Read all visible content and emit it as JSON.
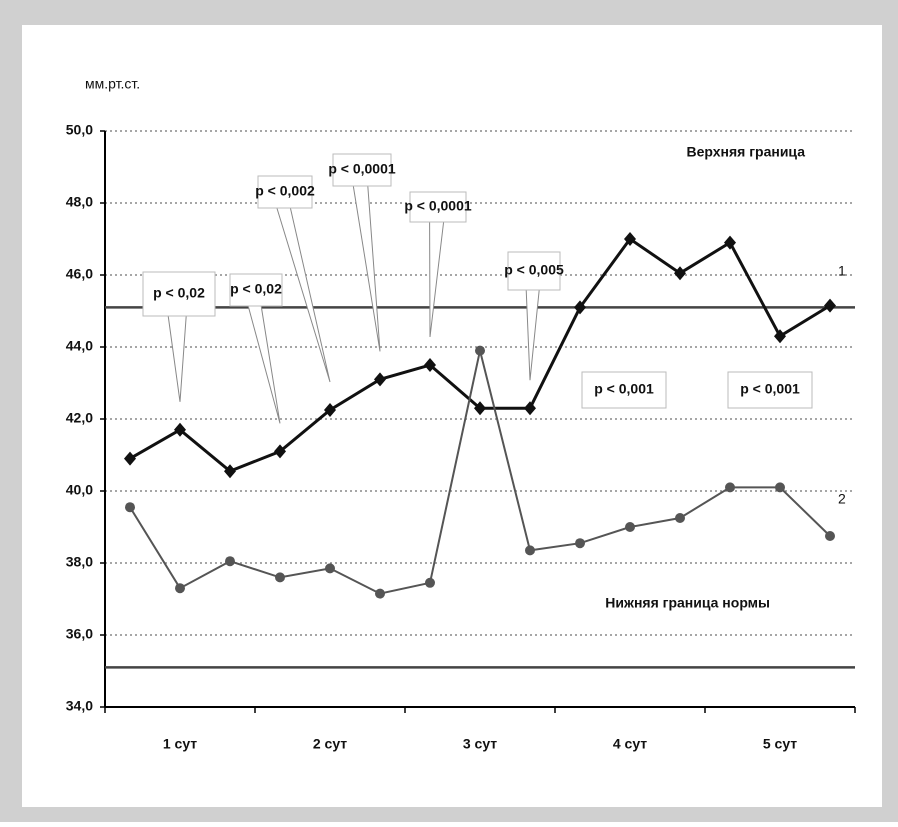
{
  "chart_data": {
    "type": "line",
    "y_label": "мм.рт.ст.",
    "categories": [
      null,
      "1 сут",
      null,
      null,
      "2 сут",
      null,
      null,
      "3 сут",
      null,
      null,
      "4 сут",
      null,
      null,
      "5 сут",
      null
    ],
    "series": [
      {
        "name": "1",
        "color": "#111111",
        "values": [
          40.9,
          41.7,
          40.55,
          41.1,
          42.25,
          43.1,
          43.5,
          42.3,
          42.3,
          45.1,
          47.0,
          46.05,
          46.9,
          44.3,
          45.15
        ]
      },
      {
        "name": "2",
        "color": "#555555",
        "values": [
          39.55,
          37.3,
          38.05,
          37.6,
          37.85,
          37.15,
          37.45,
          43.9,
          38.35,
          38.55,
          39.0,
          39.25,
          40.1,
          40.1,
          38.75
        ]
      }
    ],
    "ylim": [
      34,
      50
    ],
    "yticks": [
      {
        "value": 34,
        "label": "34,0"
      },
      {
        "value": 36,
        "label": "36,0"
      },
      {
        "value": 38,
        "label": "38,0"
      },
      {
        "value": 40,
        "label": "40,0"
      },
      {
        "value": 42,
        "label": "42,0"
      },
      {
        "value": 44,
        "label": "44,0"
      },
      {
        "value": 46,
        "label": "46,0"
      },
      {
        "value": 48,
        "label": "48,0"
      },
      {
        "value": 50,
        "label": "50,0"
      }
    ],
    "grid": true,
    "reference_lines": [
      {
        "value": 45.1,
        "label": "Верхняя граница"
      },
      {
        "value": 35.1,
        "label": "Нижняя граница нормы"
      }
    ],
    "annotations": [
      "p < 0,02",
      "p < 0,02",
      "p < 0,002",
      "p < 0,0001",
      "p < 0,0001",
      "p < 0,005",
      "p < 0,001",
      "p < 0,001"
    ]
  }
}
